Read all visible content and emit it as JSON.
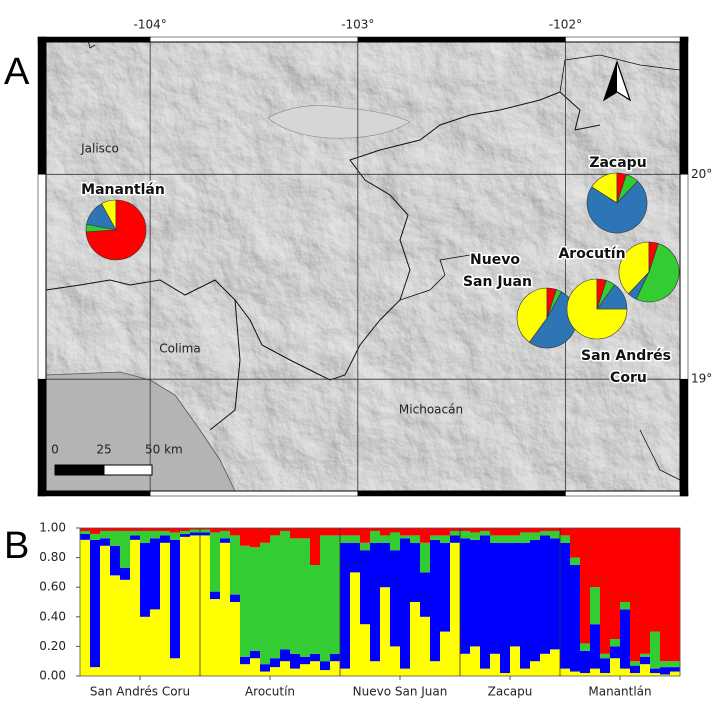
{
  "chart_data": [
    {
      "type": "map",
      "panel_label": "A",
      "xlim": [
        -104.54,
        -101.41
      ],
      "ylim": [
        18.43,
        20.67
      ],
      "xticks": [
        {
          "value": -104,
          "label": "-104°"
        },
        {
          "value": -103,
          "label": "-103°"
        },
        {
          "value": -102,
          "label": "-102°"
        }
      ],
      "yticks": [
        {
          "value": 20,
          "label": "20°"
        },
        {
          "value": 19,
          "label": "19°"
        }
      ],
      "regions": [
        "Jalisco",
        "Colima",
        "Michoacán"
      ],
      "scale_bar": [
        "0",
        "25",
        "50 km"
      ],
      "colors": [
        "#ffff00",
        "#2e75b6",
        "#33cc33",
        "#ff0000"
      ],
      "pies": [
        {
          "name": "Manantlán",
          "values": [
            8,
            14,
            4,
            74
          ]
        },
        {
          "name": "Zacapu",
          "values": [
            16,
            72,
            7,
            5
          ]
        },
        {
          "name": "Nuevo San Juan",
          "values": [
            40,
            52,
            3,
            5
          ]
        },
        {
          "name": "San Andrés Coru",
          "values": [
            75,
            15,
            5,
            5
          ]
        },
        {
          "name": "Arocutín",
          "values": [
            38,
            5,
            52,
            5
          ]
        }
      ]
    },
    {
      "type": "bar",
      "stacked": true,
      "panel_label": "B",
      "ylim": [
        0,
        1
      ],
      "yticks": [
        {
          "value": 0,
          "label": "0.00"
        },
        {
          "value": 0.2,
          "label": "0.20"
        },
        {
          "value": 0.4,
          "label": "0.40"
        },
        {
          "value": 0.6,
          "label": "0.60"
        },
        {
          "value": 0.8,
          "label": "0.80"
        },
        {
          "value": 1,
          "label": "1.00"
        }
      ],
      "groups": [
        {
          "name": "San Andrés Coru",
          "size": 12
        },
        {
          "name": "Arocutín",
          "size": 14
        },
        {
          "name": "Nuevo San Juan",
          "size": 12
        },
        {
          "name": "Zacapu",
          "size": 10
        },
        {
          "name": "Manantlán",
          "size": 12
        }
      ],
      "series": [
        {
          "color": "#ffff00",
          "values": [
            0.92,
            0.06,
            0.88,
            0.68,
            0.65,
            0.92,
            0.4,
            0.45,
            0.9,
            0.12,
            0.94,
            0.95,
            0.95,
            0.52,
            0.9,
            0.5,
            0.08,
            0.12,
            0.03,
            0.06,
            0.1,
            0.05,
            0.08,
            0.1,
            0.04,
            0.1,
            0.05,
            0.7,
            0.35,
            0.1,
            0.6,
            0.2,
            0.05,
            0.5,
            0.4,
            0.1,
            0.3,
            0.9,
            0.15,
            0.2,
            0.05,
            0.15,
            0.02,
            0.2,
            0.05,
            0.1,
            0.15,
            0.18,
            0.05,
            0.03,
            0.02,
            0.05,
            0.02,
            0.12,
            0.05,
            0.02,
            0.08,
            0.02,
            0.01,
            0.03
          ]
        },
        {
          "color": "#0000ff",
          "values": [
            0.04,
            0.86,
            0.05,
            0.2,
            0.08,
            0.03,
            0.5,
            0.48,
            0.05,
            0.8,
            0.02,
            0.02,
            0.02,
            0.05,
            0.03,
            0.05,
            0.05,
            0.05,
            0.05,
            0.06,
            0.08,
            0.1,
            0.05,
            0.05,
            0.06,
            0.05,
            0.85,
            0.2,
            0.5,
            0.8,
            0.3,
            0.65,
            0.88,
            0.4,
            0.3,
            0.82,
            0.6,
            0.05,
            0.78,
            0.72,
            0.9,
            0.75,
            0.88,
            0.7,
            0.85,
            0.82,
            0.8,
            0.75,
            0.85,
            0.72,
            0.15,
            0.3,
            0.1,
            0.08,
            0.4,
            0.05,
            0.05,
            0.03,
            0.05,
            0.03
          ]
        },
        {
          "color": "#33cc33",
          "values": [
            0.02,
            0.04,
            0.05,
            0.1,
            0.25,
            0.03,
            0.08,
            0.05,
            0.03,
            0.05,
            0.02,
            0.02,
            0.02,
            0.4,
            0.05,
            0.4,
            0.75,
            0.7,
            0.82,
            0.83,
            0.8,
            0.78,
            0.8,
            0.6,
            0.85,
            0.8,
            0.05,
            0.05,
            0.05,
            0.08,
            0.05,
            0.12,
            0.02,
            0.05,
            0.2,
            0.03,
            0.05,
            0.03,
            0.05,
            0.05,
            0.03,
            0.05,
            0.05,
            0.05,
            0.07,
            0.05,
            0.03,
            0.05,
            0.05,
            0.05,
            0.05,
            0.25,
            0.03,
            0.05,
            0.05,
            0.03,
            0.02,
            0.25,
            0.04,
            0.04
          ]
        },
        {
          "color": "#ff0000",
          "values": [
            0.02,
            0.04,
            0.02,
            0.02,
            0.02,
            0.02,
            0.02,
            0.02,
            0.02,
            0.03,
            0.02,
            0.01,
            0.01,
            0.03,
            0.02,
            0.05,
            0.12,
            0.13,
            0.1,
            0.05,
            0.02,
            0.07,
            0.07,
            0.25,
            0.05,
            0.05,
            0.05,
            0.05,
            0.1,
            0.02,
            0.05,
            0.03,
            0.05,
            0.05,
            0.1,
            0.05,
            0.05,
            0.02,
            0.02,
            0.03,
            0.02,
            0.05,
            0.05,
            0.05,
            0.03,
            0.03,
            0.02,
            0.02,
            0.05,
            0.2,
            0.78,
            0.4,
            0.85,
            0.75,
            0.5,
            0.9,
            0.85,
            0.7,
            0.9,
            0.9
          ]
        }
      ]
    }
  ]
}
